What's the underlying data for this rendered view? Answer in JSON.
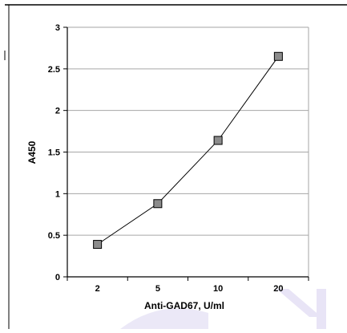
{
  "chart_data": {
    "type": "line",
    "title": "",
    "xlabel": "Anti-GAD67, U/ml",
    "ylabel": "A450",
    "categories": [
      "2",
      "5",
      "10",
      "20"
    ],
    "series": [
      {
        "values": [
          0.39,
          0.88,
          1.64,
          2.65
        ]
      }
    ],
    "ylim": [
      0,
      3
    ],
    "yticks": [
      "0",
      "0.5",
      "1",
      "1.5",
      "2",
      "2.5",
      "3"
    ],
    "grid": true,
    "legend": "none",
    "colors": {
      "line": "#000000",
      "marker_fill": "#8c8c8c",
      "marker_stroke": "#000000",
      "grid": "#a6a6a6",
      "axis": "#000000",
      "watermark": "#e6e3f5"
    }
  }
}
